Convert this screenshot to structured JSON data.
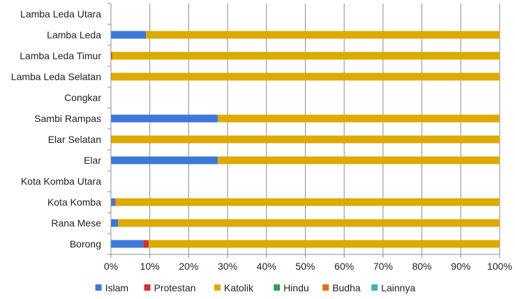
{
  "chart_data": {
    "type": "bar",
    "orientation": "horizontal",
    "stacked": true,
    "percent_stacked": true,
    "title": "",
    "xlabel": "",
    "ylabel": "",
    "xlim": [
      0,
      100
    ],
    "x_ticks": [
      "0%",
      "10%",
      "20%",
      "30%",
      "40%",
      "50%",
      "60%",
      "70%",
      "80%",
      "90%",
      "100%"
    ],
    "grid": true,
    "legend_position": "bottom",
    "categories": [
      "Lamba Leda Utara",
      "Lamba Leda",
      "Lamba Leda Timur",
      "Lamba Leda Selatan",
      "Congkar",
      "Sambi Rampas",
      "Elar Selatan",
      "Elar",
      "Kota Komba Utara",
      "Kota Komba",
      "Rana Mese",
      "Borong"
    ],
    "series": [
      {
        "name": "Islam",
        "color": "#3c78d8",
        "values": [
          0,
          9.0,
          0,
          0,
          0,
          27.5,
          0,
          27.5,
          0,
          1.0,
          1.8,
          8.3
        ]
      },
      {
        "name": "Protestan",
        "color": "#cc3333",
        "values": [
          0,
          0,
          0.3,
          0,
          0,
          0,
          0,
          0,
          0,
          0.2,
          0,
          1.4
        ]
      },
      {
        "name": "Katolik",
        "color": "#ddaa00",
        "values": [
          0,
          91.0,
          99.7,
          100,
          0,
          72.5,
          100,
          72.5,
          0,
          98.8,
          98.2,
          90.3
        ]
      },
      {
        "name": "Hindu",
        "color": "#2e9e4f",
        "values": [
          0,
          0,
          0,
          0,
          0,
          0,
          0,
          0,
          0,
          0,
          0,
          0
        ]
      },
      {
        "name": "Budha",
        "color": "#e66c10",
        "values": [
          0,
          0,
          0,
          0,
          0,
          0,
          0,
          0,
          0,
          0,
          0,
          0
        ]
      },
      {
        "name": "Lainnya",
        "color": "#3bb3b7",
        "values": [
          0,
          0,
          0,
          0,
          0,
          0,
          0,
          0,
          0,
          0,
          0,
          0
        ]
      }
    ]
  }
}
